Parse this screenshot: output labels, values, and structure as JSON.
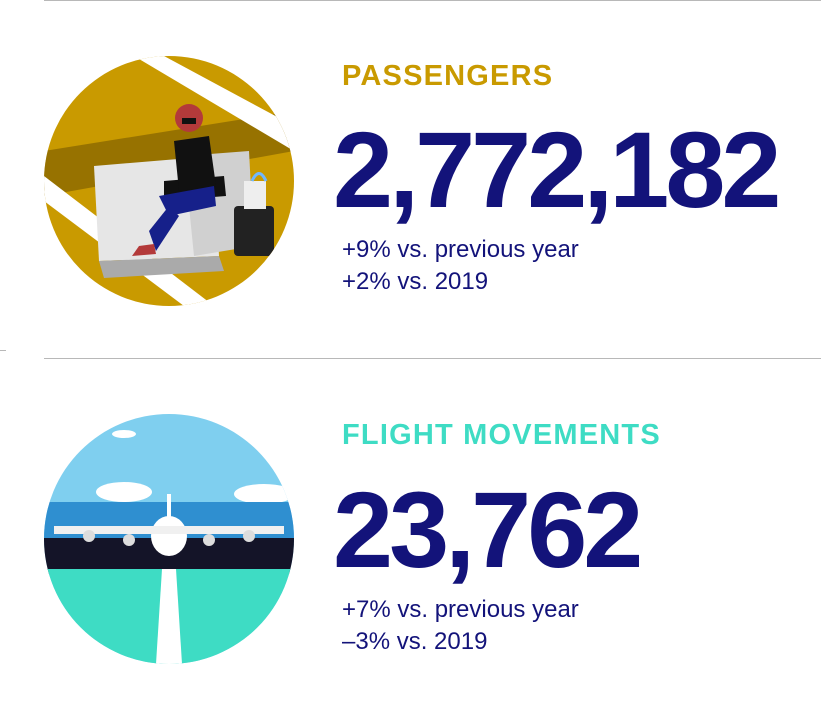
{
  "colors": {
    "navy": "#13137a",
    "gold": "#c99a00",
    "teal": "#3edcc4",
    "rule": "#b8b8b8"
  },
  "sections": [
    {
      "label": "PASSENGERS",
      "label_color": "#c99a00",
      "value": "2,772,182",
      "lines": [
        "+9% vs. previous year",
        "+2% vs. 2019"
      ],
      "illustration": "passenger-lounge-icon"
    },
    {
      "label": "FLIGHT MOVEMENTS",
      "label_color": "#3edcc4",
      "value": "23,762",
      "lines": [
        "+7% vs. previous year",
        "–3% vs. 2019"
      ],
      "illustration": "airplane-runway-icon"
    }
  ]
}
